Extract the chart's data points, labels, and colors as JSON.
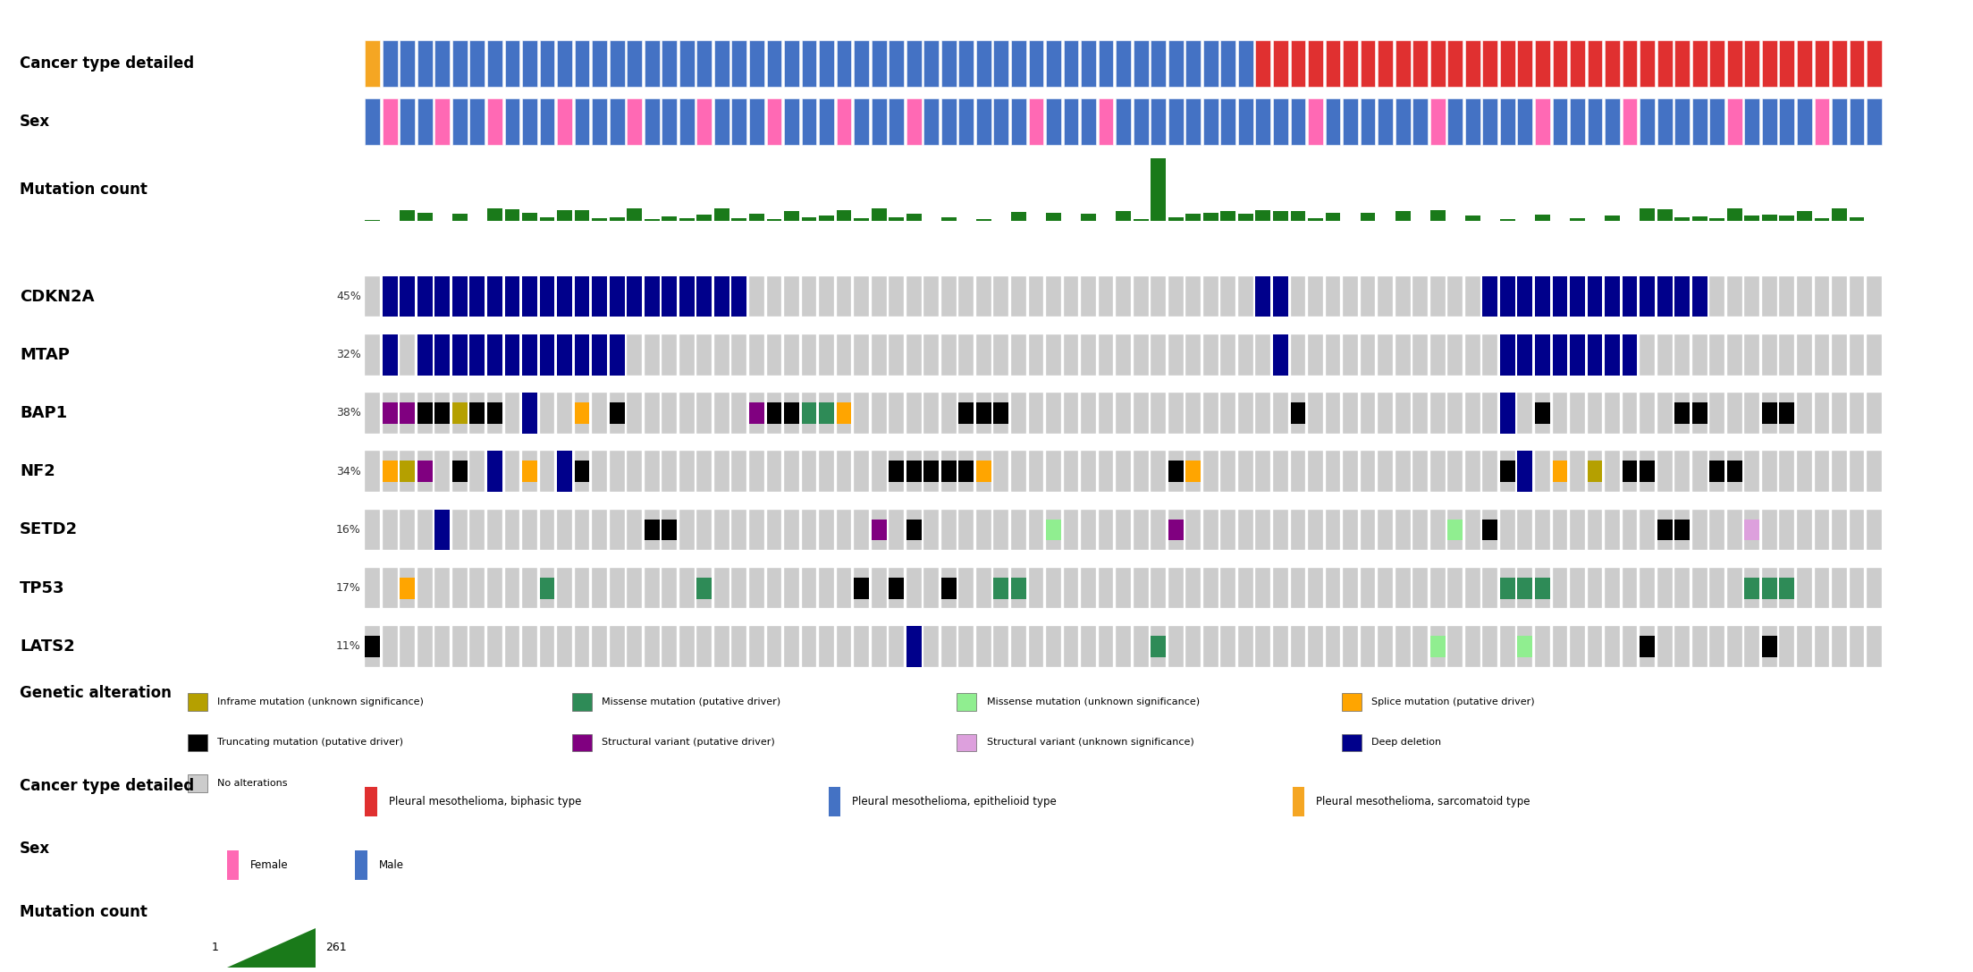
{
  "n_samples": 87,
  "cancer_type_colors": {
    "orange": "#F5A623",
    "blue": "#4472C4",
    "red": "#E03030"
  },
  "sex_colors": {
    "pink": "#FF69B4",
    "blue": "#4472C4"
  },
  "gene_alteration_colors": {
    "inframe_unknown": "#B5A000",
    "missense_driver": "#2E8B57",
    "missense_unknown": "#90EE90",
    "splice_driver": "#FFA500",
    "truncating_driver": "#000000",
    "structural_driver": "#800080",
    "structural_unknown": "#DDA0DD",
    "deep_deletion": "#00008B",
    "no_alteration": "#CCCCCC"
  },
  "mutation_green": "#1A7A1A",
  "genes": [
    "CDKN2A",
    "MTAP",
    "BAP1",
    "NF2",
    "SETD2",
    "TP53",
    "LATS2"
  ],
  "gene_percentages": [
    "45%",
    "32%",
    "38%",
    "34%",
    "16%",
    "17%",
    "11%"
  ],
  "background_color": "#FFFFFF",
  "legend_items_genetic": [
    [
      "Inframe mutation (unknown significance)",
      "#B5A000"
    ],
    [
      "Missense mutation (putative driver)",
      "#2E8B57"
    ],
    [
      "Missense mutation (unknown significance)",
      "#90EE90"
    ],
    [
      "Splice mutation (putative driver)",
      "#FFA500"
    ],
    [
      "Truncating mutation (putative driver)",
      "#000000"
    ],
    [
      "Structural variant (putative driver)",
      "#800080"
    ],
    [
      "Structural variant (unknown significance)",
      "#DDA0DD"
    ],
    [
      "Deep deletion",
      "#00008B"
    ],
    [
      "No alterations",
      "#CCCCCC"
    ]
  ],
  "legend_items_cancer": [
    [
      "Pleural mesothelioma, biphasic type",
      "#E03030"
    ],
    [
      "Pleural mesothelioma, epithelioid type",
      "#4472C4"
    ],
    [
      "Pleural mesothelioma, sarcomatoid type",
      "#F5A623"
    ]
  ],
  "legend_items_sex": [
    [
      "Female",
      "#FF69B4"
    ],
    [
      "Male",
      "#4472C4"
    ]
  ]
}
